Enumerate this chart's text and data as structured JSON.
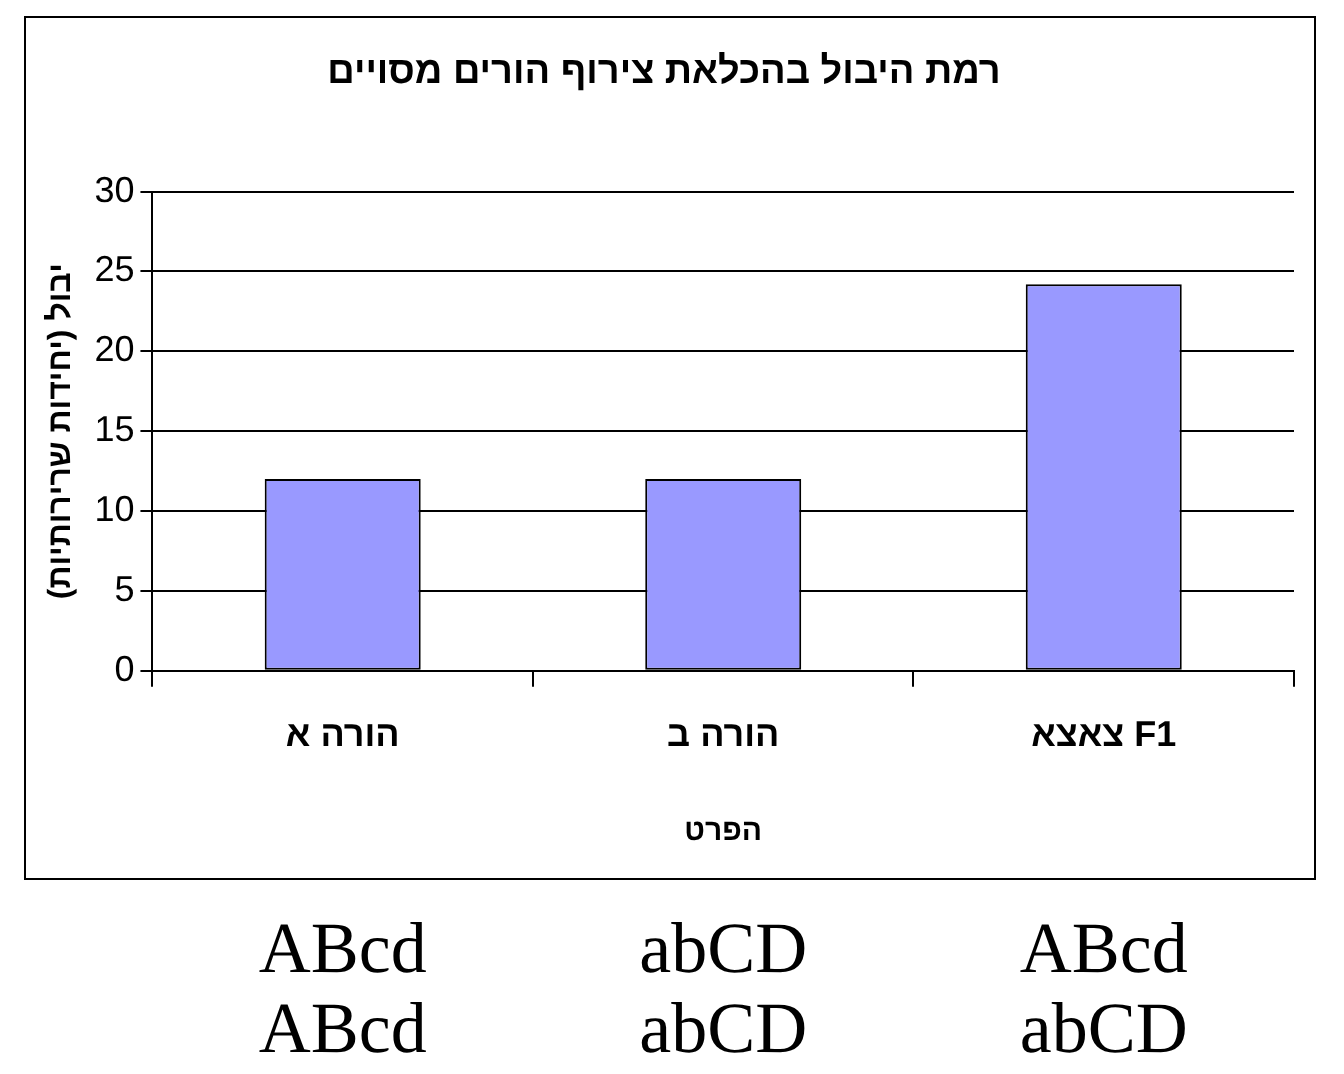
{
  "chart_data": {
    "type": "bar",
    "title": "רמת היבול בהכלאת צירוף הורים מסויים",
    "xlabel": "הפרט",
    "ylabel": "יבול (יחידות שרירותיות)",
    "categories": [
      "הורה א",
      "הורה ב",
      "צאצא F1"
    ],
    "values": [
      12,
      12,
      24.2
    ],
    "color": "#9999ff",
    "ylim": [
      0,
      30
    ],
    "yticks": [
      0,
      5,
      10,
      15,
      20,
      25,
      30
    ],
    "grid": "y",
    "legend": false,
    "annotations": [
      "ABcd",
      "abCD",
      "ABcd",
      "ABcd",
      "abCD",
      "abCD"
    ]
  }
}
